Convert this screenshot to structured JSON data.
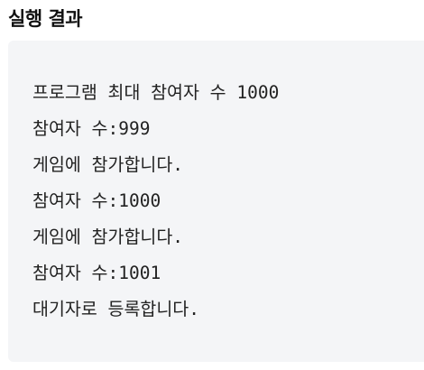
{
  "section": {
    "title": "실행 결과"
  },
  "output": {
    "lines": [
      "프로그램 최대 참여자 수 1000",
      "참여자 수:999",
      "게임에 참가합니다.",
      "참여자 수:1000",
      "게임에 참가합니다.",
      "참여자 수:1001",
      "대기자로 등록합니다."
    ]
  },
  "colors": {
    "output_background": "#f4f5f7",
    "text": "#222222"
  }
}
